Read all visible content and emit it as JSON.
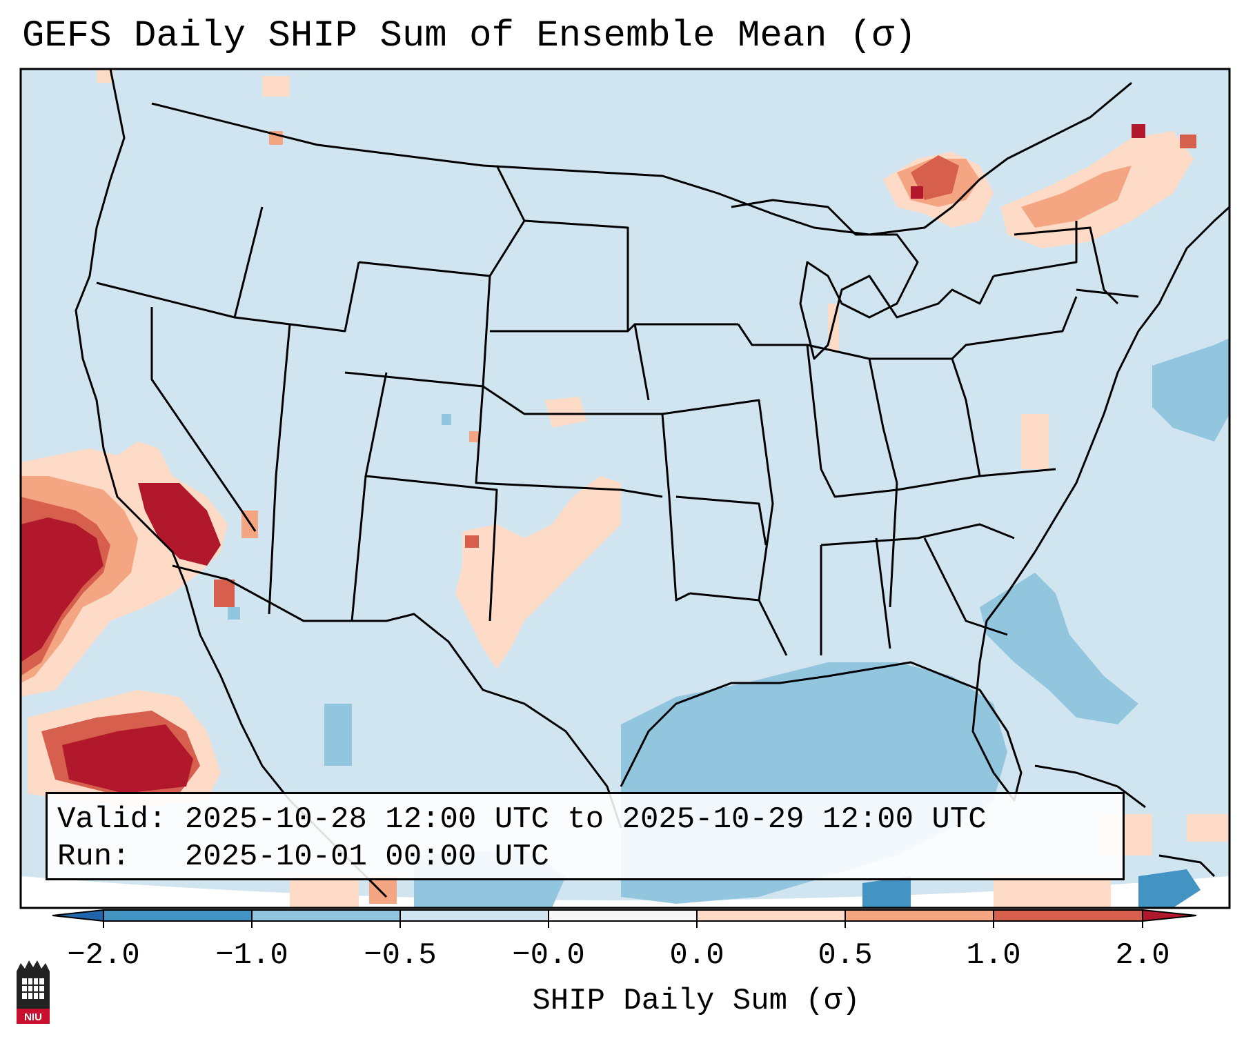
{
  "title": "GEFS Daily SHIP Sum of Ensemble Mean (σ)",
  "valid_label": "Valid:",
  "valid_value": "2025-10-28 12:00 UTC to 2025-10-29 12:00 UTC",
  "run_label": "Run:",
  "run_value": "2025-10-01 00:00 UTC",
  "colorbar": {
    "label": "SHIP Daily Sum (σ)",
    "ticks": [
      "−2.0",
      "−1.0",
      "−0.5",
      "−0.0",
      "0.0",
      "0.5",
      "1.0",
      "2.0"
    ],
    "colors": [
      "#4a8fc7",
      "#92c5de",
      "#d1e5f0",
      "#f7f7f7",
      "#fddbc7",
      "#f4a582",
      "#d6604d",
      "#b2182b"
    ],
    "extend": "both"
  },
  "logo_text": "NIU",
  "colors": {
    "background_anomaly": "#d1e5f0",
    "negative_moderate": "#92c5de",
    "negative_strong": "#4393c3",
    "positive_weak": "#fddbc7",
    "positive_moderate": "#f4a582",
    "positive_strong": "#d6604d",
    "positive_extreme": "#b2182b",
    "border_lines": "#000000"
  }
}
